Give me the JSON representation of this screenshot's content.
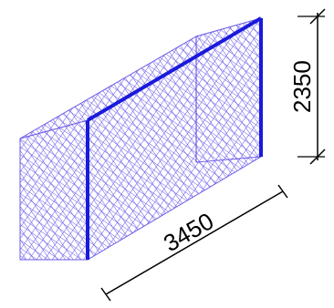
{
  "colors": {
    "net": "#6b5ce7",
    "post": "#1a1adb",
    "dimension": "#000000",
    "background": "#ffffff"
  },
  "dimensions": {
    "width_label": "3450",
    "height_label": "2350"
  }
}
